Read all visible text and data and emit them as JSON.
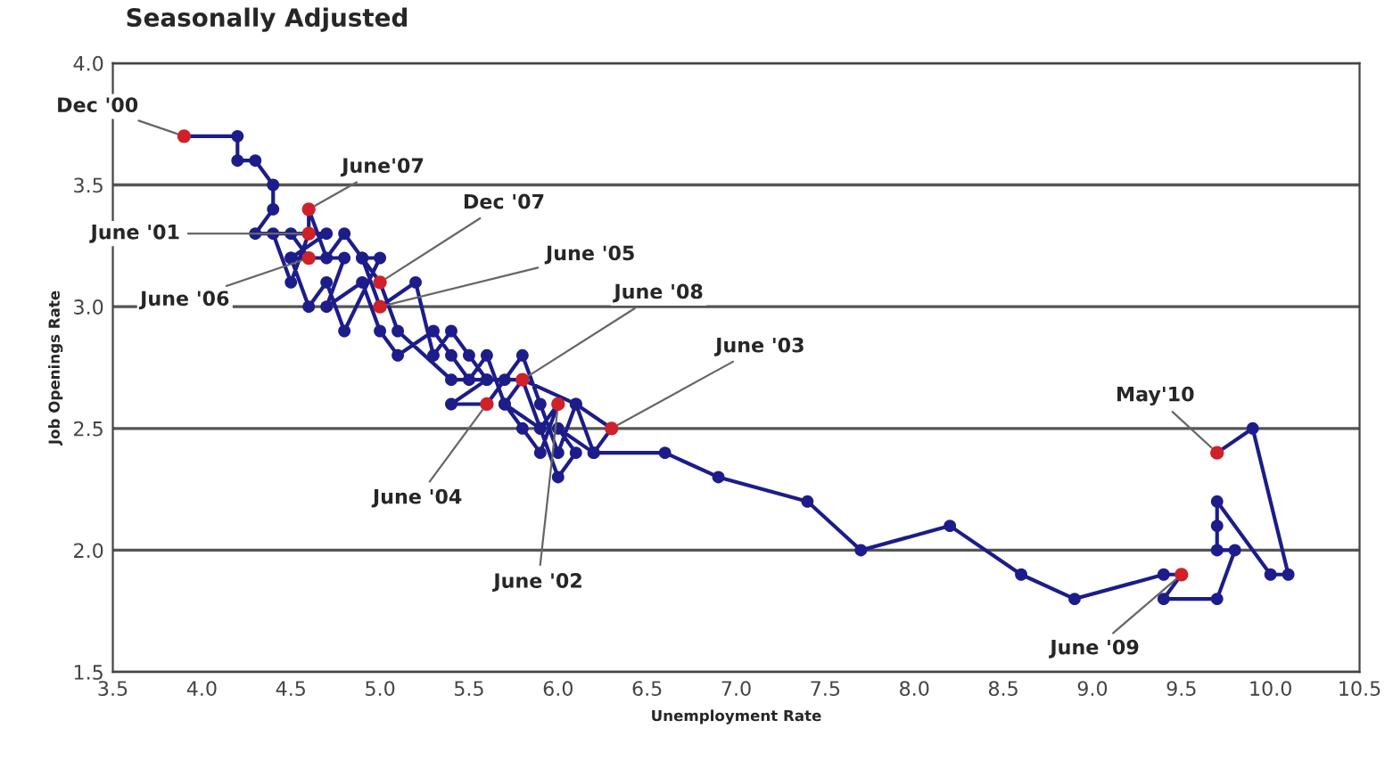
{
  "chart_data": {
    "type": "line",
    "title": "Seasonally Adjusted",
    "xlabel": "Unemployment Rate",
    "ylabel": "Job Openings Rate",
    "xlim": [
      3.5,
      10.5
    ],
    "xticks": [
      {
        "value": 3.5,
        "label": "3.5"
      },
      {
        "value": 4.0,
        "label": "4.0"
      },
      {
        "value": 4.5,
        "label": "4.5"
      },
      {
        "value": 5.0,
        "label": "5.0"
      },
      {
        "value": 5.5,
        "label": "5.5"
      },
      {
        "value": 6.0,
        "label": "6.0"
      },
      {
        "value": 6.5,
        "label": "6.5"
      },
      {
        "value": 7.0,
        "label": "7.0"
      },
      {
        "value": 7.5,
        "label": "7.5"
      },
      {
        "value": 8.0,
        "label": "8.0"
      },
      {
        "value": 8.5,
        "label": "8.5"
      },
      {
        "value": 9.0,
        "label": "9.0"
      },
      {
        "value": 9.5,
        "label": "9.5"
      },
      {
        "value": 10.0,
        "label": "10.0"
      },
      {
        "value": 10.5,
        "label": "10.5"
      }
    ],
    "ylim": [
      1.5,
      4.0
    ],
    "yticks": [
      {
        "value": 1.5,
        "label": "1.5"
      },
      {
        "value": 2.0,
        "label": "2.0"
      },
      {
        "value": 2.5,
        "label": "2.5"
      },
      {
        "value": 3.0,
        "label": "3.0"
      },
      {
        "value": 3.5,
        "label": "3.5"
      },
      {
        "value": 4.0,
        "label": "4.0"
      }
    ],
    "grid": "y",
    "marker": "circle",
    "line_style": "solid",
    "legend": false,
    "series": [
      {
        "color": "#1c1c8a",
        "x": [
          3.9,
          4.2,
          4.2,
          4.3,
          4.4,
          4.4,
          4.3,
          4.6,
          4.7,
          4.5,
          4.8,
          4.7,
          4.9,
          5.0,
          5.1,
          5.3,
          5.4,
          5.5,
          5.6,
          5.7,
          5.9,
          6.0,
          5.9,
          5.8,
          5.7,
          5.8,
          5.9,
          6.0,
          6.1,
          6.0,
          6.2,
          6.3,
          6.1,
          6.0,
          5.9,
          5.8,
          5.7,
          5.6,
          5.4,
          5.6,
          5.5,
          5.4,
          5.3,
          5.2,
          5.0,
          4.9,
          5.0,
          4.8,
          4.7,
          4.6,
          4.5,
          4.6,
          4.5,
          4.4,
          4.5,
          4.6,
          4.6,
          4.7,
          4.8,
          4.9,
          5.0,
          5.1,
          5.4,
          5.6,
          5.8,
          6.1,
          6.2,
          6.6,
          6.9,
          7.4,
          7.7,
          8.2,
          8.6,
          8.9,
          9.4,
          9.5,
          9.4,
          9.7,
          9.8,
          9.7,
          9.7,
          9.7,
          10.0,
          10.1,
          9.9,
          9.7
        ],
        "values": [
          3.7,
          3.7,
          3.6,
          3.6,
          3.5,
          3.4,
          3.3,
          3.3,
          3.3,
          3.2,
          3.2,
          3.0,
          3.1,
          2.9,
          2.8,
          2.9,
          2.8,
          2.7,
          2.8,
          2.6,
          2.5,
          2.6,
          2.4,
          2.5,
          2.6,
          2.7,
          2.5,
          2.3,
          2.4,
          2.5,
          2.4,
          2.5,
          2.6,
          2.4,
          2.6,
          2.8,
          2.7,
          2.6,
          2.6,
          2.7,
          2.8,
          2.9,
          2.8,
          3.1,
          3.0,
          3.2,
          3.2,
          2.9,
          3.1,
          3.0,
          3.2,
          3.2,
          3.3,
          3.3,
          3.1,
          3.3,
          3.4,
          3.2,
          3.3,
          3.2,
          3.1,
          2.9,
          2.7,
          2.7,
          2.7,
          2.6,
          2.4,
          2.4,
          2.3,
          2.2,
          2.0,
          2.1,
          1.9,
          1.8,
          1.9,
          1.9,
          1.8,
          1.8,
          2.0,
          2.0,
          2.1,
          2.2,
          1.9,
          1.9,
          2.5,
          2.4
        ]
      },
      {
        "type": "scatter",
        "color": "#d0202a",
        "x": [
          3.9,
          4.6,
          4.6,
          4.6,
          5.0,
          5.0,
          5.8,
          5.6,
          6.0,
          6.3,
          9.7,
          9.5
        ],
        "values": [
          3.7,
          3.4,
          3.3,
          3.2,
          3.1,
          3.0,
          2.7,
          2.6,
          2.6,
          2.5,
          2.4,
          1.9
        ]
      }
    ],
    "annotations": [
      {
        "text": "Dec '00",
        "x": 3.9,
        "y": 3.7
      },
      {
        "text": "June'07",
        "x": 4.6,
        "y": 3.4
      },
      {
        "text": "June '01",
        "x": 4.6,
        "y": 3.3
      },
      {
        "text": "June '06",
        "x": 4.6,
        "y": 3.2
      },
      {
        "text": "Dec '07",
        "x": 5.0,
        "y": 3.1
      },
      {
        "text": "June '05",
        "x": 5.0,
        "y": 3.0
      },
      {
        "text": "June '08",
        "x": 5.8,
        "y": 2.7
      },
      {
        "text": "June '04",
        "x": 5.6,
        "y": 2.6
      },
      {
        "text": "June '02",
        "x": 6.0,
        "y": 2.6
      },
      {
        "text": "June '03",
        "x": 6.3,
        "y": 2.5
      },
      {
        "text": "May'10",
        "x": 9.7,
        "y": 2.4
      },
      {
        "text": "June '09",
        "x": 9.5,
        "y": 1.9
      }
    ]
  }
}
